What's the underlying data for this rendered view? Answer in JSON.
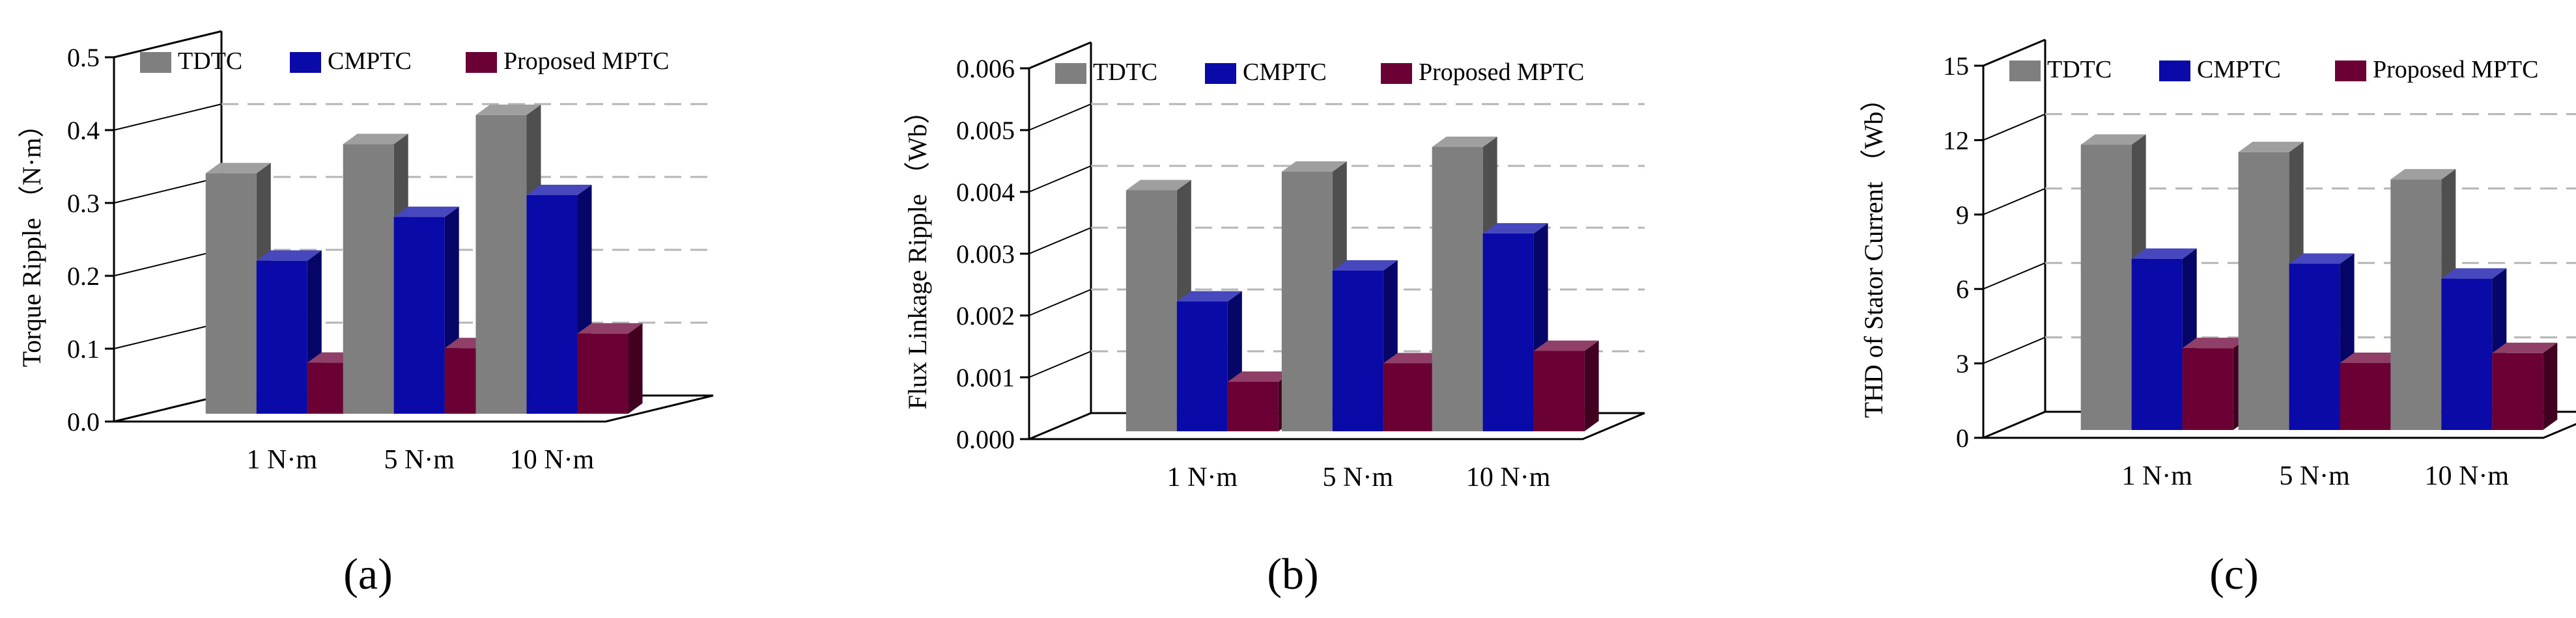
{
  "chart_data": [
    {
      "type": "bar",
      "panel_label": "(a)",
      "title": "",
      "xlabel": "",
      "ylabel": "Torque Ripple （N·m）",
      "ylim": [
        0,
        0.5
      ],
      "yticks": [
        "0.0",
        "0.1",
        "0.2",
        "0.3",
        "0.4",
        "0.5"
      ],
      "grid": true,
      "legend_position": "top",
      "categories": [
        "1 N·m",
        "5 N·m",
        "10 N·m"
      ],
      "series": [
        {
          "name": "TDTC",
          "values": [
            0.33,
            0.37,
            0.41
          ]
        },
        {
          "name": "CMPTC",
          "values": [
            0.21,
            0.27,
            0.3
          ]
        },
        {
          "name": "Proposed MPTC",
          "values": [
            0.07,
            0.09,
            0.11
          ]
        }
      ]
    },
    {
      "type": "bar",
      "panel_label": "(b)",
      "title": "",
      "xlabel": "",
      "ylabel": "Flux Linkage Ripple （Wb）",
      "ylim": [
        0,
        0.006
      ],
      "yticks": [
        "0.000",
        "0.001",
        "0.002",
        "0.003",
        "0.004",
        "0.005",
        "0.006"
      ],
      "grid": true,
      "legend_position": "top",
      "categories": [
        "1 N·m",
        "5 N·m",
        "10 N·m"
      ],
      "series": [
        {
          "name": "TDTC",
          "values": [
            0.0039,
            0.0042,
            0.0046
          ]
        },
        {
          "name": "CMPTC",
          "values": [
            0.0021,
            0.0026,
            0.0032
          ]
        },
        {
          "name": "Proposed MPTC",
          "values": [
            0.0008,
            0.0011,
            0.0013
          ]
        }
      ]
    },
    {
      "type": "bar",
      "panel_label": "(c)",
      "title": "",
      "xlabel": "",
      "ylabel": "THD of Stator Current （Wb）",
      "ylim": [
        0,
        15
      ],
      "yticks": [
        "0",
        "3",
        "6",
        "9",
        "12",
        "15"
      ],
      "grid": true,
      "legend_position": "top",
      "categories": [
        "1 N·m",
        "5 N·m",
        "10 N·m"
      ],
      "series": [
        {
          "name": "TDTC",
          "values": [
            11.5,
            11.2,
            10.1
          ]
        },
        {
          "name": "CMPTC",
          "values": [
            6.9,
            6.7,
            6.1
          ]
        },
        {
          "name": "Proposed MPTC",
          "values": [
            3.3,
            2.7,
            3.1
          ]
        }
      ]
    }
  ],
  "colors": {
    "TDTC": "#7f7f7f",
    "CMPTC": "#0a0aa8",
    "Proposed MPTC": "#6b0035"
  }
}
